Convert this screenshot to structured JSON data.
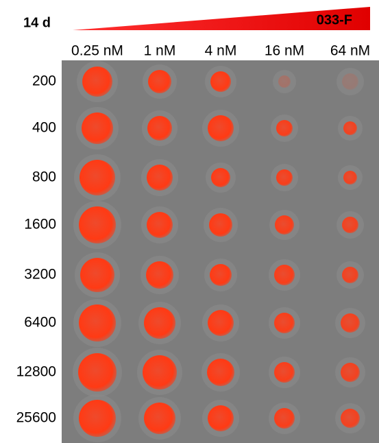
{
  "header": {
    "title": "14 d",
    "compound": "033-F"
  },
  "columns": [
    "0.25 nM",
    "1 nM",
    "4 nM",
    "16 nM",
    "64 nM"
  ],
  "rows": [
    "200",
    "400",
    "800",
    "1600",
    "3200",
    "6400",
    "12800",
    "25600"
  ]
}
